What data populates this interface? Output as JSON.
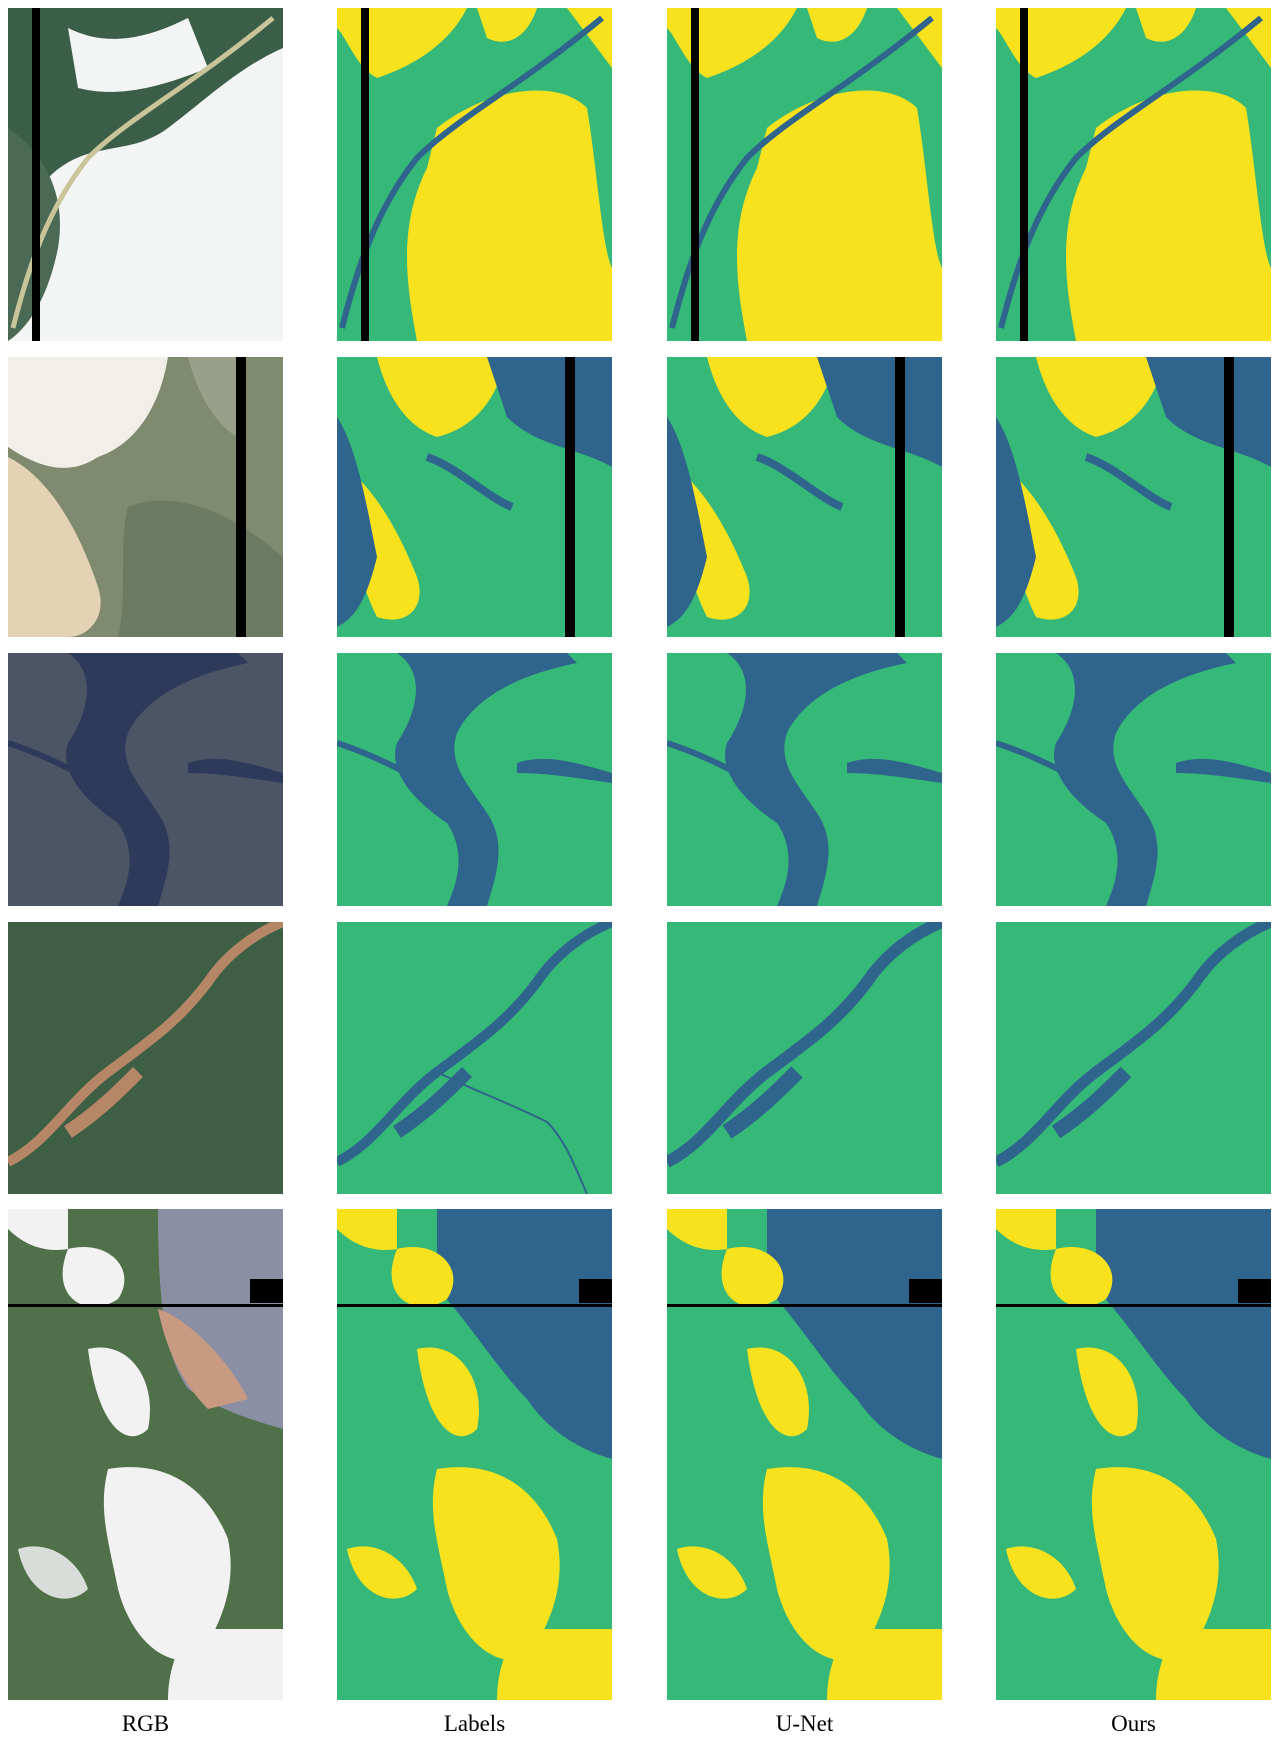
{
  "columns": [
    "RGB",
    "Labels",
    "U-Net",
    "Ours"
  ],
  "rows": 5,
  "colors": {
    "water": "#2f648c",
    "land": "#36b878",
    "cloud": "#f8e21e",
    "nodata": "#000000",
    "rgb_water_dark": "#2e3a5a",
    "rgb_vegetation": "#3f5f45",
    "rgb_cloud": "#f2f2f2",
    "rgb_sediment": "#b58766"
  }
}
